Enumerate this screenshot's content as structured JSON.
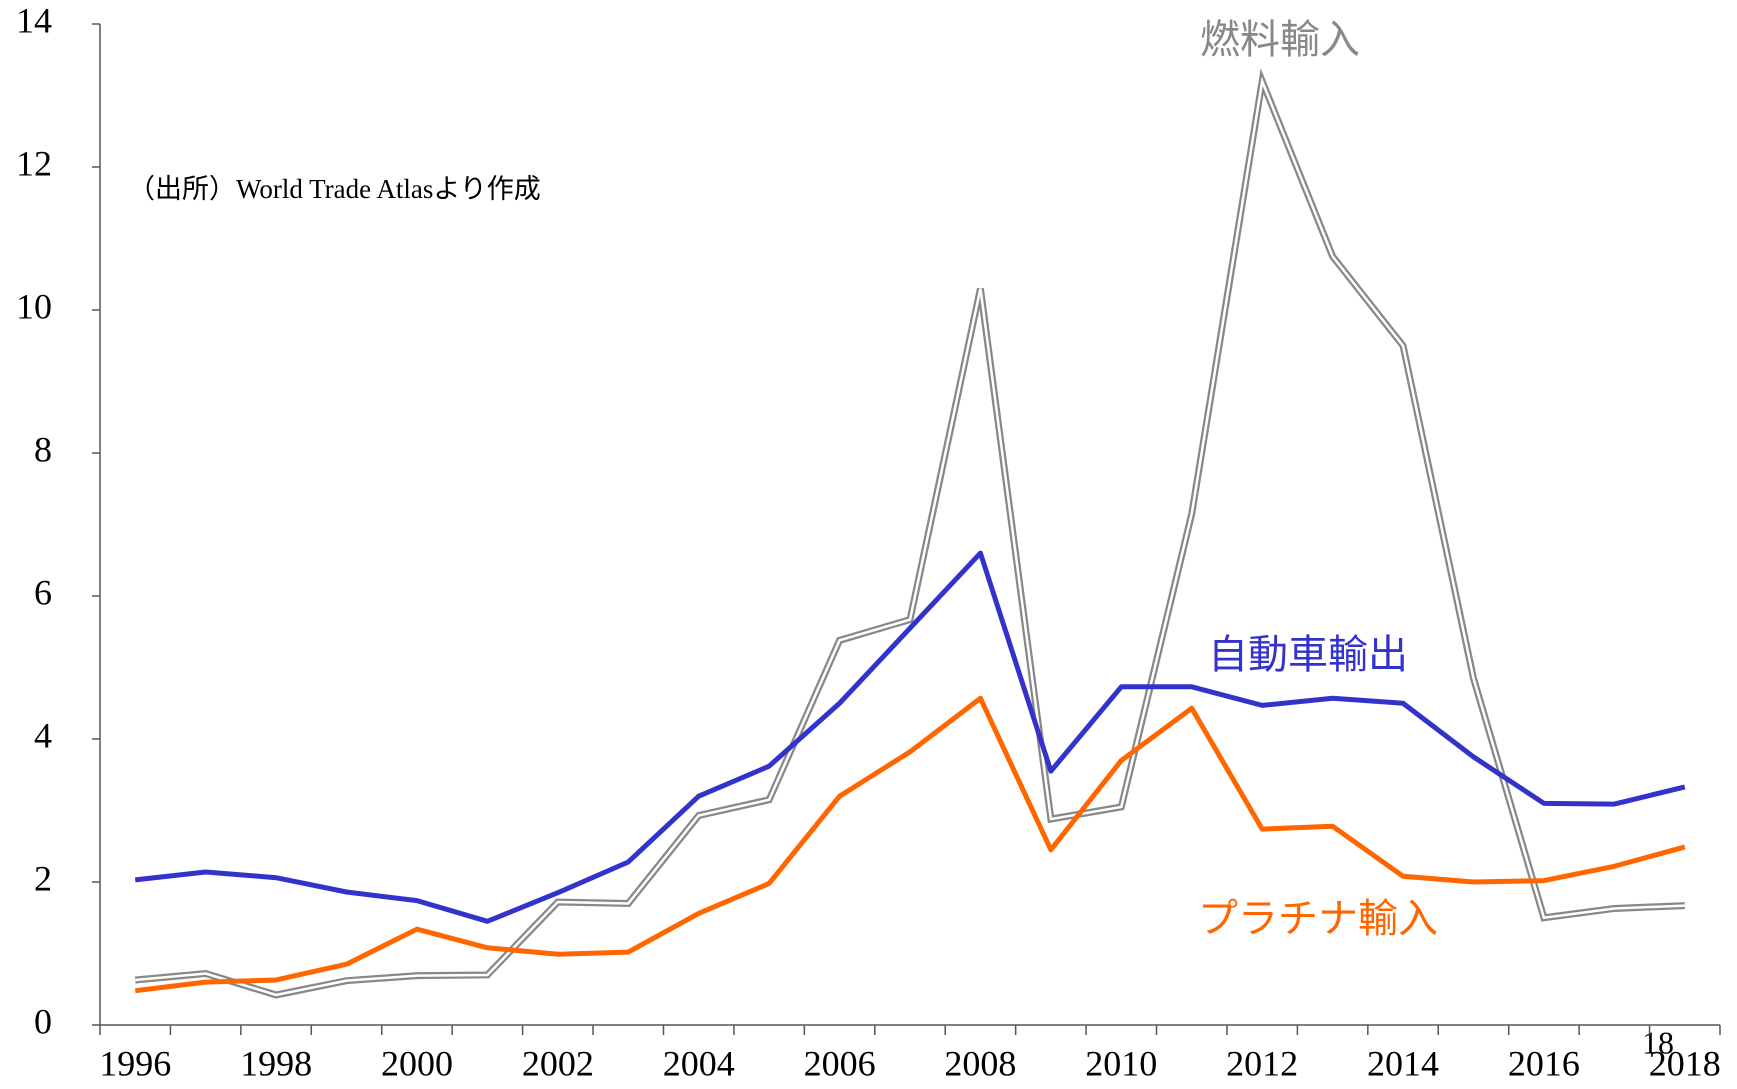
{
  "chart_data": {
    "type": "line",
    "categories": [
      "1996",
      null,
      "1998",
      null,
      "2000",
      null,
      "2002",
      null,
      "2004",
      null,
      "2006",
      null,
      "2008",
      null,
      "2010",
      null,
      "2012",
      null,
      "2014",
      null,
      "2016",
      null,
      "2018"
    ],
    "series": [
      {
        "name": "自動車輸出",
        "color": "#3333cc",
        "values": [
          2.03,
          2.14,
          2.06,
          1.86,
          1.74,
          1.45,
          1.85,
          2.28,
          3.2,
          3.62,
          4.5,
          5.55,
          6.6,
          3.55,
          4.73,
          4.73,
          4.47,
          4.57,
          4.5,
          3.75,
          3.1,
          3.09,
          3.33
        ]
      },
      {
        "name": "プラチナ輸入",
        "color": "#ff6600",
        "values": [
          0.48,
          0.6,
          0.63,
          0.85,
          1.34,
          1.08,
          0.99,
          1.02,
          1.56,
          1.98,
          3.2,
          3.82,
          4.57,
          2.45,
          3.7,
          4.43,
          2.74,
          2.78,
          2.08,
          2.0,
          2.02,
          2.22,
          2.49
        ]
      },
      {
        "name": "燃料輸入",
        "color": "#888888",
        "values": [
          0.63,
          0.72,
          0.42,
          0.62,
          0.69,
          0.7,
          1.72,
          1.7,
          2.93,
          3.15,
          5.38,
          5.67,
          10.3,
          2.88,
          3.05,
          7.15,
          13.2,
          10.75,
          9.5,
          4.85,
          1.5,
          1.63,
          1.67
        ]
      }
    ],
    "ylim": [
      0,
      14
    ],
    "yticks": [
      0,
      2,
      4,
      6,
      8,
      10,
      12,
      14
    ],
    "annotations": [
      "（出所）World Trade Atlasより作成",
      "18"
    ]
  }
}
